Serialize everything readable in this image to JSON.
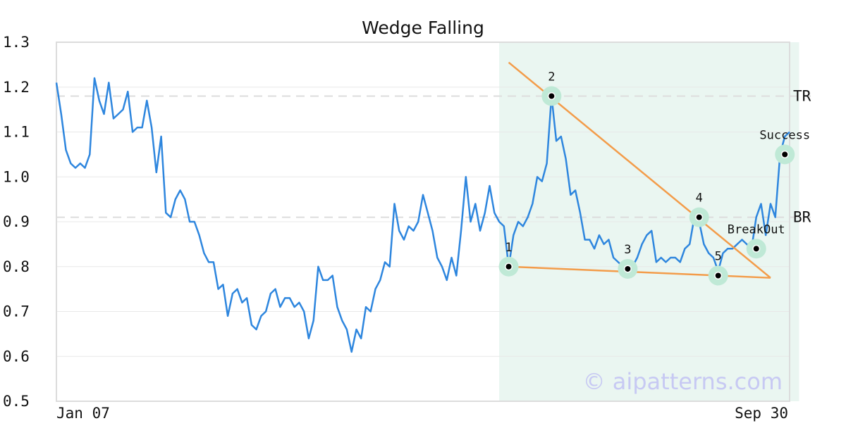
{
  "chart_data": {
    "type": "line",
    "title": "Wedge Falling",
    "xlabel": "",
    "ylabel": "",
    "ylim": [
      0.5,
      1.3
    ],
    "yticks": [
      "1.3",
      "1.2",
      "1.1",
      "1.0",
      "0.9",
      "0.8",
      "0.7",
      "0.6",
      "0.5"
    ],
    "xtick_labels": [
      "Jan 07",
      "Sep 30"
    ],
    "grid": true,
    "watermark": "© aipatterns.com",
    "colors": {
      "price": "#2e86de",
      "trendline": "#f39c4a",
      "highlight": "#eaf6f1",
      "marker_ring": "#bfe9d6",
      "reference": "#dddddd"
    },
    "series": [
      {
        "values": [
          1.21,
          1.14,
          1.06,
          1.03,
          1.02,
          1.03,
          1.02,
          1.05,
          1.22,
          1.17,
          1.14,
          1.21,
          1.13,
          1.14,
          1.15,
          1.19,
          1.1,
          1.11,
          1.11,
          1.17,
          1.11,
          1.01,
          1.09,
          0.92,
          0.91,
          0.95,
          0.97,
          0.95,
          0.9,
          0.9,
          0.87,
          0.83,
          0.81,
          0.81,
          0.75,
          0.76,
          0.69,
          0.74,
          0.75,
          0.72,
          0.73,
          0.67,
          0.66,
          0.69,
          0.7,
          0.74,
          0.75,
          0.71,
          0.73,
          0.73,
          0.71,
          0.72,
          0.7,
          0.64,
          0.68,
          0.8,
          0.77,
          0.77,
          0.78,
          0.71,
          0.68,
          0.66,
          0.61,
          0.66,
          0.64,
          0.71,
          0.7,
          0.75,
          0.77,
          0.81,
          0.8,
          0.94,
          0.88,
          0.86,
          0.89,
          0.88,
          0.9,
          0.96,
          0.92,
          0.88,
          0.82,
          0.8,
          0.77,
          0.82,
          0.78,
          0.88,
          1.0,
          0.9,
          0.94,
          0.88,
          0.92,
          0.98,
          0.92,
          0.9,
          0.89,
          0.8,
          0.87,
          0.9,
          0.89,
          0.91,
          0.94,
          1.0,
          0.99,
          1.03,
          1.18,
          1.08,
          1.09,
          1.04,
          0.96,
          0.97,
          0.92,
          0.86,
          0.86,
          0.84,
          0.87,
          0.85,
          0.86,
          0.82,
          0.81,
          0.8,
          0.79,
          0.8,
          0.82,
          0.85,
          0.87,
          0.88,
          0.81,
          0.82,
          0.81,
          0.82,
          0.82,
          0.81,
          0.84,
          0.85,
          0.91,
          0.9,
          0.85,
          0.83,
          0.82,
          0.79,
          0.83,
          0.84,
          0.84,
          0.85,
          0.86,
          0.85,
          0.84,
          0.91,
          0.94,
          0.87,
          0.94,
          0.91,
          1.05,
          1.09,
          1.1
        ]
      }
    ],
    "highlight_range": [
      93,
      156
    ],
    "reference_lines": [
      {
        "label": "TR",
        "value": 1.18
      },
      {
        "label": "BR",
        "value": 0.91
      }
    ],
    "trendlines": [
      {
        "from": [
          95,
          1.255
        ],
        "to": [
          150,
          0.775
        ]
      },
      {
        "from": [
          95,
          0.8
        ],
        "to": [
          150,
          0.775
        ]
      }
    ],
    "markers": [
      {
        "label": "1",
        "x": 95,
        "y": 0.8,
        "label_pos": "above"
      },
      {
        "label": "2",
        "x": 104,
        "y": 1.18,
        "label_pos": "above"
      },
      {
        "label": "3",
        "x": 120,
        "y": 0.795,
        "label_pos": "above"
      },
      {
        "label": "4",
        "x": 135,
        "y": 0.91,
        "label_pos": "above"
      },
      {
        "label": "5",
        "x": 139,
        "y": 0.78,
        "label_pos": "above"
      },
      {
        "label": "BreakOut",
        "x": 147,
        "y": 0.84,
        "label_pos": "above"
      },
      {
        "label": "Success",
        "x": 153,
        "y": 1.05,
        "label_pos": "above"
      }
    ]
  }
}
